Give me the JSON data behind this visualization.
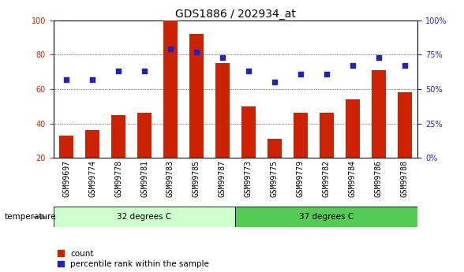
{
  "title": "GDS1886 / 202934_at",
  "categories": [
    "GSM99697",
    "GSM99774",
    "GSM99778",
    "GSM99781",
    "GSM99783",
    "GSM99785",
    "GSM99787",
    "GSM99773",
    "GSM99775",
    "GSM99779",
    "GSM99782",
    "GSM99784",
    "GSM99786",
    "GSM99788"
  ],
  "bar_values": [
    33,
    36,
    45,
    46,
    100,
    92,
    75,
    50,
    31,
    46,
    46,
    54,
    71,
    58
  ],
  "scatter_pct": [
    57,
    57,
    63,
    63,
    79,
    77,
    73,
    63,
    55,
    61,
    61,
    67,
    73,
    67
  ],
  "bar_color": "#cc2200",
  "scatter_color": "#2222bb",
  "ymin": 20,
  "ymax": 100,
  "yticks_left": [
    20,
    40,
    60,
    80,
    100
  ],
  "yticks_right_labels": [
    "0%",
    "25%",
    "50%",
    "75%",
    "100%"
  ],
  "group1_label": "32 degrees C",
  "group2_label": "37 degrees C",
  "group1_count": 7,
  "group2_count": 7,
  "group1_color": "#ccffcc",
  "group2_color": "#55cc55",
  "factor_label": "temperature",
  "legend_count_label": "count",
  "legend_pct_label": "percentile rank within the sample",
  "bg_color": "#ffffff",
  "tick_label_color_left": "#cc2200",
  "tick_label_color_right": "#2222bb",
  "col_bg_color": "#cccccc",
  "col_sep_color": "#ffffff",
  "title_fontsize": 10,
  "tick_fontsize": 7,
  "label_fontsize": 7.5
}
